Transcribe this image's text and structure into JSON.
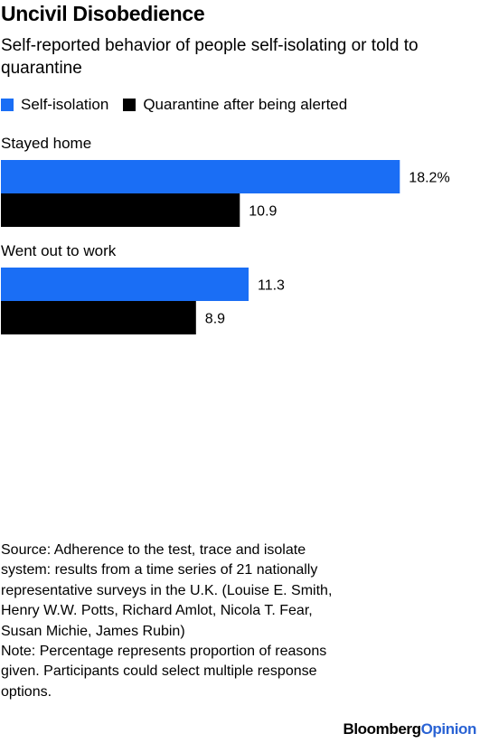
{
  "title": "Uncivil Disobedience",
  "subtitle": "Self-reported behavior of people self-isolating or told to quarantine",
  "legend": [
    {
      "label": "Self-isolation",
      "color": "#1a6ef5"
    },
    {
      "label": "Quarantine after being alerted",
      "color": "#000000"
    }
  ],
  "chart_data": {
    "type": "bar",
    "orientation": "horizontal",
    "categories": [
      "Stayed home",
      "Went out to work"
    ],
    "series": [
      {
        "name": "Self-isolation",
        "values": [
          18.2,
          11.3
        ],
        "labels": [
          "18.2%",
          "11.3"
        ],
        "color": "#1a6ef5"
      },
      {
        "name": "Quarantine after being alerted",
        "values": [
          10.9,
          8.9
        ],
        "labels": [
          "10.9",
          "8.9"
        ],
        "color": "#000000"
      }
    ],
    "xlim": [
      0,
      18.6
    ],
    "grid": false,
    "legend_position": "top-left"
  },
  "source": "Source: Adherence to the test, trace and isolate system: results from a time series of 21 nationally representative surveys in the U.K. (Louise E. Smith, Henry W.W. Potts, Richard Amlot, Nicola T. Fear, Susan Michie, James Rubin)",
  "note": "Note: Percentage represents proportion of reasons given. Participants could select multiple response options.",
  "brand": {
    "part1": "Bloomberg",
    "part2": "Opinion",
    "accent": "#2a63d4"
  }
}
